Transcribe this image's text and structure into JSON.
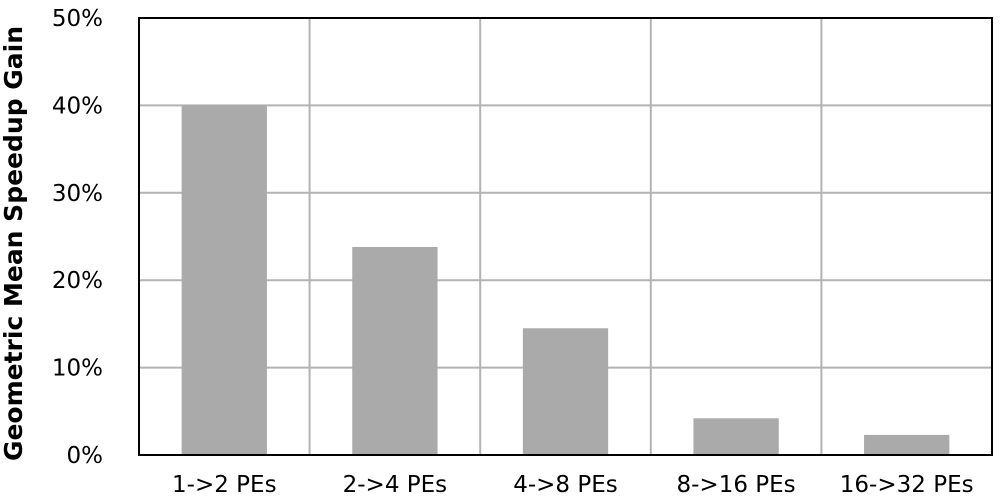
{
  "chart_data": {
    "type": "bar",
    "categories": [
      "1->2 PEs",
      "2->4 PEs",
      "4->8 PEs",
      "8->16 PEs",
      "16->32 PEs"
    ],
    "values": [
      40,
      23.8,
      14.5,
      4.2,
      2.3
    ],
    "ylabel": "Geometric Mean Speedup Gain",
    "xlabel": "",
    "ylim": [
      0,
      50
    ],
    "y_ticks": [
      "0%",
      "10%",
      "20%",
      "30%",
      "40%",
      "50%"
    ],
    "grid": true,
    "bar_color": "#a9aaa9",
    "grid_color": "#b3b3b3"
  }
}
